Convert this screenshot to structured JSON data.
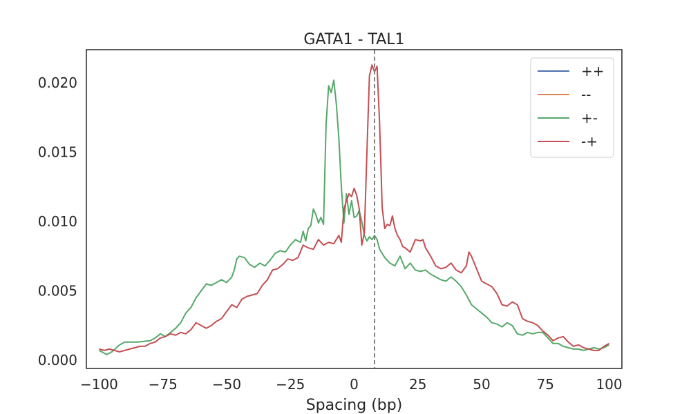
{
  "chart_data": {
    "type": "line",
    "title": "GATA1 - TAL1",
    "xlabel": "Spacing (bp)",
    "ylabel": "",
    "xlim": [
      -105,
      105
    ],
    "ylim": [
      -0.0006,
      0.0224
    ],
    "xticks": [
      -100,
      -75,
      -50,
      -25,
      0,
      25,
      50,
      75,
      100
    ],
    "xtick_labels": [
      "−100",
      "−75",
      "−50",
      "−25",
      "0",
      "25",
      "50",
      "75",
      "100"
    ],
    "yticks": [
      0.0,
      0.005,
      0.01,
      0.015,
      0.02
    ],
    "ytick_labels": [
      "0.000",
      "0.005",
      "0.010",
      "0.015",
      "0.020"
    ],
    "grid": false,
    "legend_position": "top-right",
    "vline": {
      "x": 8,
      "style": "dashed",
      "color": "#808080"
    },
    "series": [
      {
        "name": "++",
        "color": "#4c72b0",
        "points": []
      },
      {
        "name": "--",
        "color": "#dd8452",
        "points": []
      },
      {
        "name": "+-",
        "color": "#55a868",
        "points": [
          [
            -100,
            0.0007
          ],
          [
            -97,
            0.0004
          ],
          [
            -95,
            0.0006
          ],
          [
            -92,
            0.0011
          ],
          [
            -90,
            0.0013
          ],
          [
            -85,
            0.0013
          ],
          [
            -80,
            0.0014
          ],
          [
            -78,
            0.0016
          ],
          [
            -76,
            0.0019
          ],
          [
            -74,
            0.0017
          ],
          [
            -72,
            0.002
          ],
          [
            -70,
            0.0023
          ],
          [
            -68,
            0.0027
          ],
          [
            -66,
            0.0034
          ],
          [
            -64,
            0.0038
          ],
          [
            -62,
            0.0045
          ],
          [
            -60,
            0.005
          ],
          [
            -58,
            0.0055
          ],
          [
            -56,
            0.0054
          ],
          [
            -54,
            0.0056
          ],
          [
            -52,
            0.0058
          ],
          [
            -50,
            0.0056
          ],
          [
            -48,
            0.006
          ],
          [
            -47,
            0.0065
          ],
          [
            -46,
            0.0073
          ],
          [
            -45,
            0.0075
          ],
          [
            -43,
            0.0074
          ],
          [
            -41,
            0.0069
          ],
          [
            -39,
            0.0067
          ],
          [
            -37,
            0.007
          ],
          [
            -35,
            0.0068
          ],
          [
            -33,
            0.0072
          ],
          [
            -31,
            0.0077
          ],
          [
            -29,
            0.0079
          ],
          [
            -27,
            0.0078
          ],
          [
            -25,
            0.0083
          ],
          [
            -23,
            0.0087
          ],
          [
            -21,
            0.0085
          ],
          [
            -20,
            0.0093
          ],
          [
            -19,
            0.0086
          ],
          [
            -18,
            0.0095
          ],
          [
            -17,
            0.0097
          ],
          [
            -16,
            0.0109
          ],
          [
            -15,
            0.0105
          ],
          [
            -14,
            0.0099
          ],
          [
            -13,
            0.0103
          ],
          [
            -12,
            0.0098
          ],
          [
            -11,
            0.017
          ],
          [
            -10,
            0.0198
          ],
          [
            -9,
            0.0193
          ],
          [
            -8,
            0.0202
          ],
          [
            -7,
            0.0185
          ],
          [
            -6,
            0.016
          ],
          [
            -5,
            0.0125
          ],
          [
            -4,
            0.0099
          ],
          [
            -3,
            0.012
          ],
          [
            -2,
            0.0105
          ],
          [
            -1,
            0.0115
          ],
          [
            0,
            0.0103
          ],
          [
            1,
            0.0104
          ],
          [
            2,
            0.0108
          ],
          [
            3,
            0.01
          ],
          [
            4,
            0.009
          ],
          [
            5,
            0.0086
          ],
          [
            6,
            0.0089
          ],
          [
            7,
            0.0087
          ],
          [
            8,
            0.009
          ],
          [
            9,
            0.0087
          ],
          [
            10,
            0.008
          ],
          [
            12,
            0.0074
          ],
          [
            14,
            0.007
          ],
          [
            16,
            0.0068
          ],
          [
            18,
            0.0075
          ],
          [
            20,
            0.0066
          ],
          [
            22,
            0.007
          ],
          [
            24,
            0.0065
          ],
          [
            26,
            0.0064
          ],
          [
            28,
            0.0065
          ],
          [
            30,
            0.0062
          ],
          [
            32,
            0.006
          ],
          [
            34,
            0.0058
          ],
          [
            36,
            0.0057
          ],
          [
            38,
            0.006
          ],
          [
            40,
            0.0057
          ],
          [
            42,
            0.0053
          ],
          [
            44,
            0.0047
          ],
          [
            46,
            0.004
          ],
          [
            48,
            0.0037
          ],
          [
            50,
            0.0034
          ],
          [
            52,
            0.0031
          ],
          [
            54,
            0.0027
          ],
          [
            56,
            0.0026
          ],
          [
            58,
            0.0024
          ],
          [
            60,
            0.0027
          ],
          [
            62,
            0.0025
          ],
          [
            64,
            0.0019
          ],
          [
            66,
            0.0018
          ],
          [
            68,
            0.002
          ],
          [
            70,
            0.0019
          ],
          [
            72,
            0.002
          ],
          [
            74,
            0.002
          ],
          [
            76,
            0.0016
          ],
          [
            78,
            0.0012
          ],
          [
            80,
            0.0012
          ],
          [
            82,
            0.001
          ],
          [
            84,
            0.0009
          ],
          [
            86,
            0.0008
          ],
          [
            88,
            0.0008
          ],
          [
            90,
            0.0007
          ],
          [
            92,
            0.0008
          ],
          [
            94,
            0.0009
          ],
          [
            96,
            0.0008
          ],
          [
            98,
            0.0009
          ],
          [
            100,
            0.0011
          ]
        ]
      },
      {
        "name": "-+",
        "color": "#c44e52",
        "points": [
          [
            -100,
            0.0008
          ],
          [
            -98,
            0.0007
          ],
          [
            -96,
            0.0008
          ],
          [
            -94,
            0.0007
          ],
          [
            -92,
            0.0006
          ],
          [
            -90,
            0.0007
          ],
          [
            -88,
            0.0008
          ],
          [
            -86,
            0.0009
          ],
          [
            -84,
            0.001
          ],
          [
            -82,
            0.001
          ],
          [
            -80,
            0.0012
          ],
          [
            -78,
            0.0013
          ],
          [
            -76,
            0.0016
          ],
          [
            -74,
            0.0017
          ],
          [
            -72,
            0.0019
          ],
          [
            -70,
            0.0018
          ],
          [
            -68,
            0.002
          ],
          [
            -66,
            0.0019
          ],
          [
            -64,
            0.0022
          ],
          [
            -62,
            0.0027
          ],
          [
            -60,
            0.0025
          ],
          [
            -58,
            0.0023
          ],
          [
            -56,
            0.0025
          ],
          [
            -54,
            0.0028
          ],
          [
            -52,
            0.003
          ],
          [
            -50,
            0.0035
          ],
          [
            -48,
            0.004
          ],
          [
            -46,
            0.0038
          ],
          [
            -44,
            0.0044
          ],
          [
            -42,
            0.0046
          ],
          [
            -40,
            0.0047
          ],
          [
            -38,
            0.0048
          ],
          [
            -36,
            0.0054
          ],
          [
            -34,
            0.0058
          ],
          [
            -32,
            0.0065
          ],
          [
            -30,
            0.0066
          ],
          [
            -28,
            0.0069
          ],
          [
            -26,
            0.0073
          ],
          [
            -24,
            0.0072
          ],
          [
            -22,
            0.0074
          ],
          [
            -20,
            0.0083
          ],
          [
            -18,
            0.0081
          ],
          [
            -16,
            0.008
          ],
          [
            -14,
            0.0087
          ],
          [
            -12,
            0.0083
          ],
          [
            -10,
            0.0085
          ],
          [
            -8,
            0.0084
          ],
          [
            -6,
            0.009
          ],
          [
            -5,
            0.0085
          ],
          [
            -4,
            0.0109
          ],
          [
            -3,
            0.0115
          ],
          [
            -2,
            0.012
          ],
          [
            -1,
            0.0118
          ],
          [
            0,
            0.0124
          ],
          [
            1,
            0.0119
          ],
          [
            2,
            0.0109
          ],
          [
            3,
            0.0083
          ],
          [
            4,
            0.0092
          ],
          [
            5,
            0.015
          ],
          [
            6,
            0.0205
          ],
          [
            7,
            0.0213
          ],
          [
            8,
            0.0208
          ],
          [
            9,
            0.0212
          ],
          [
            10,
            0.017
          ],
          [
            11,
            0.011
          ],
          [
            12,
            0.0095
          ],
          [
            13,
            0.0098
          ],
          [
            14,
            0.0097
          ],
          [
            15,
            0.0104
          ],
          [
            16,
            0.0095
          ],
          [
            17,
            0.009
          ],
          [
            18,
            0.0087
          ],
          [
            19,
            0.0082
          ],
          [
            20,
            0.0081
          ],
          [
            22,
            0.0078
          ],
          [
            24,
            0.0087
          ],
          [
            26,
            0.0086
          ],
          [
            27,
            0.0087
          ],
          [
            28,
            0.0081
          ],
          [
            30,
            0.0075
          ],
          [
            32,
            0.0068
          ],
          [
            34,
            0.0066
          ],
          [
            36,
            0.0067
          ],
          [
            38,
            0.007
          ],
          [
            40,
            0.0065
          ],
          [
            42,
            0.0063
          ],
          [
            44,
            0.0068
          ],
          [
            45,
            0.0078
          ],
          [
            46,
            0.0075
          ],
          [
            48,
            0.0066
          ],
          [
            50,
            0.0057
          ],
          [
            52,
            0.0055
          ],
          [
            54,
            0.0053
          ],
          [
            56,
            0.0048
          ],
          [
            58,
            0.004
          ],
          [
            60,
            0.0039
          ],
          [
            62,
            0.0042
          ],
          [
            64,
            0.004
          ],
          [
            66,
            0.003
          ],
          [
            68,
            0.0028
          ],
          [
            70,
            0.0027
          ],
          [
            72,
            0.0025
          ],
          [
            74,
            0.0021
          ],
          [
            76,
            0.0018
          ],
          [
            78,
            0.0014
          ],
          [
            80,
            0.0016
          ],
          [
            82,
            0.0017
          ],
          [
            84,
            0.0013
          ],
          [
            86,
            0.001
          ],
          [
            88,
            0.0011
          ],
          [
            90,
            0.0009
          ],
          [
            92,
            0.0008
          ],
          [
            94,
            0.0007
          ],
          [
            96,
            0.0007
          ],
          [
            98,
            0.001
          ],
          [
            100,
            0.0012
          ]
        ]
      }
    ]
  }
}
